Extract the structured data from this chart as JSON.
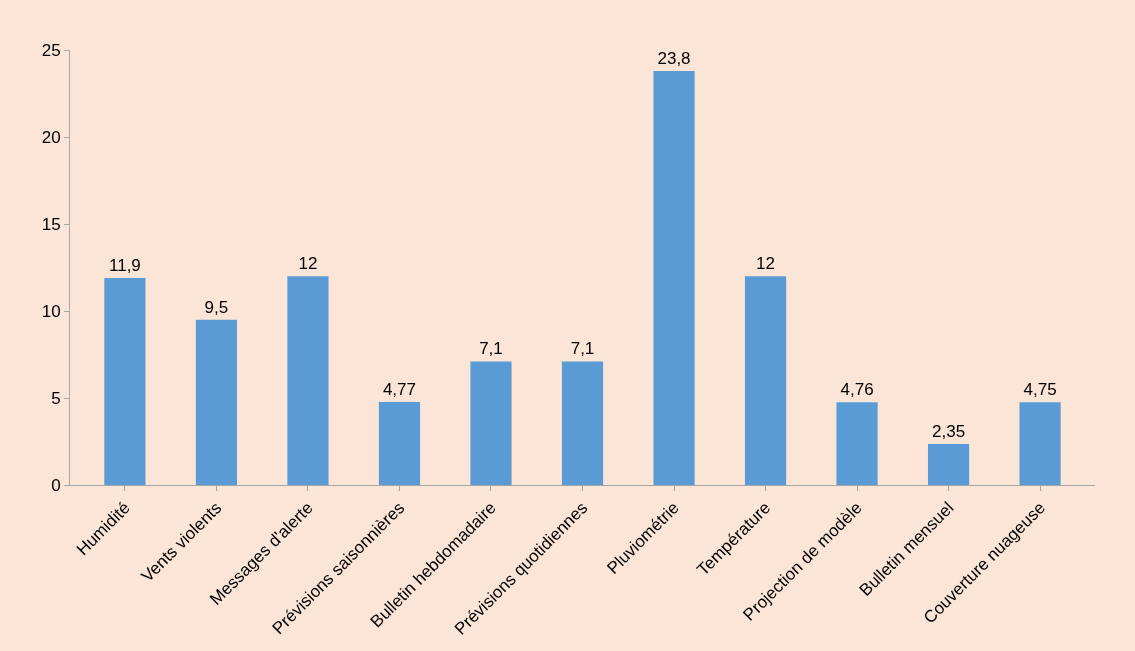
{
  "chart_data": {
    "type": "bar",
    "categories": [
      "Humidité",
      "Vents violents",
      "Messages d'alerte",
      "Prévisions saisonnières",
      "Bulletin hebdomadaire",
      "Prévisions quotidiennes",
      "Pluviométrie",
      "Température",
      "Projection de modèle",
      "Bulletin mensuel",
      "Couverture nuageuse"
    ],
    "values": [
      11.9,
      9.5,
      12,
      4.77,
      7.1,
      7.1,
      23.8,
      12,
      4.76,
      2.35,
      4.75
    ],
    "value_labels": [
      "11,9",
      "9,5",
      "12",
      "4,77",
      "7,1",
      "7,1",
      "23,8",
      "12",
      "4,76",
      "2,35",
      "4,75"
    ],
    "color": "#5b9bd5",
    "ylim": [
      0,
      25
    ],
    "yticks": [
      0,
      5,
      10,
      15,
      20,
      25
    ],
    "grid": false,
    "legend": false
  }
}
